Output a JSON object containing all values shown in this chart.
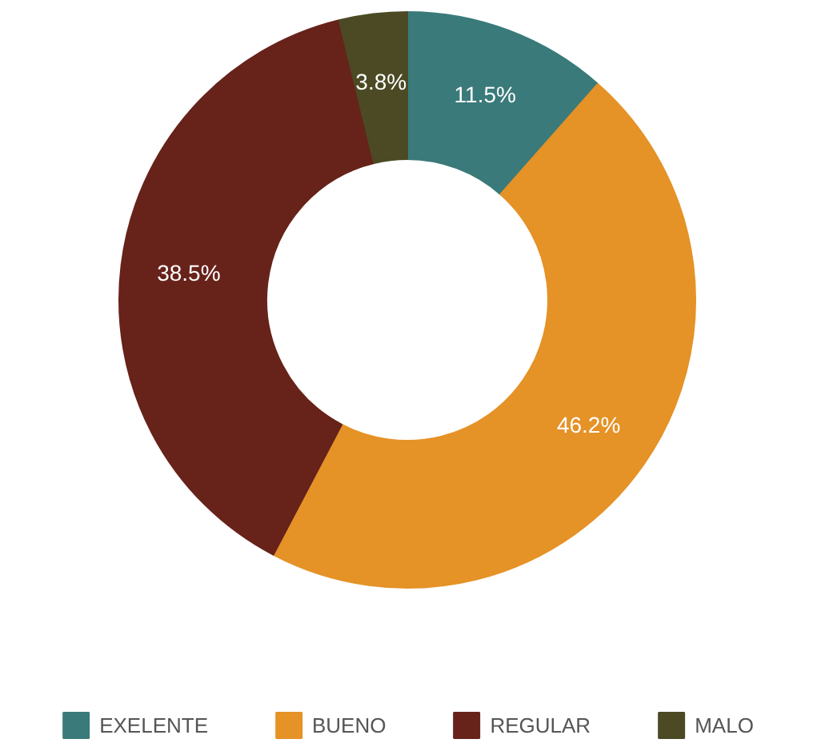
{
  "chart_data": {
    "type": "donut",
    "categories": [
      "EXELENTE",
      "BUENO",
      "REGULAR",
      "MALO"
    ],
    "values": [
      11.5,
      46.2,
      38.5,
      3.8
    ],
    "colors": [
      "#3a7a7a",
      "#e59227",
      "#67231a",
      "#4b4a24"
    ],
    "value_labels": [
      "11.5%",
      "46.2%",
      "38.5%",
      "3.8%"
    ],
    "legend": "bottom"
  }
}
